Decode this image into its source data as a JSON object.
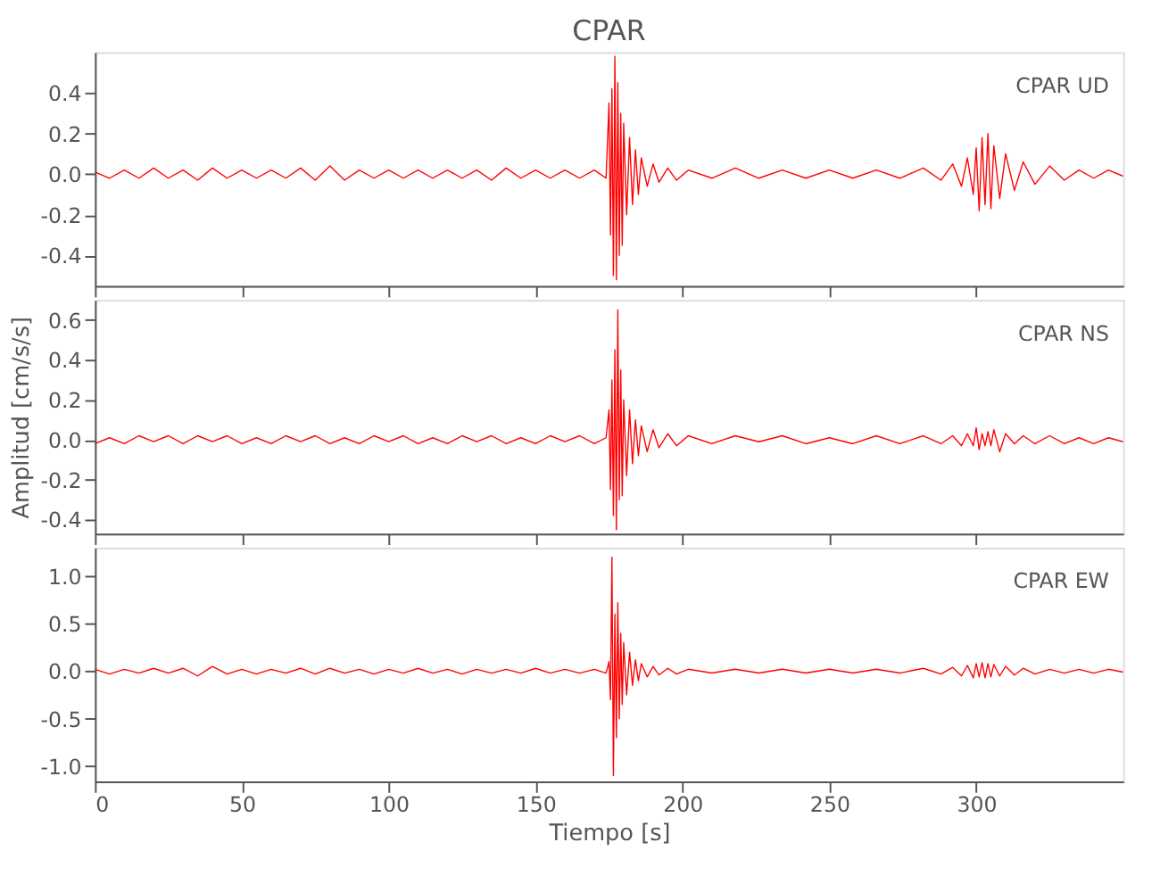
{
  "chart_data": [
    {
      "type": "line",
      "title": "CPAR",
      "annotations": [
        "CPAR UD"
      ],
      "xlim": [
        0,
        350
      ],
      "xticks": [
        0,
        50,
        100,
        150,
        200,
        250,
        300
      ],
      "ylim": [
        -0.55,
        0.6
      ],
      "yticks": [
        -0.4,
        -0.2,
        {
          "value": 0,
          "label": "0.0"
        },
        0.2,
        0.4
      ],
      "grid": false,
      "tick_labels": "y",
      "series": [
        {
          "color": "#ff0000",
          "x": [
            0,
            5,
            10,
            15,
            20,
            25,
            30,
            35,
            40,
            45,
            50,
            55,
            60,
            65,
            70,
            75,
            80,
            85,
            90,
            95,
            100,
            105,
            110,
            115,
            120,
            125,
            130,
            135,
            140,
            145,
            150,
            155,
            160,
            165,
            170,
            174,
            175,
            175.5,
            176,
            176.5,
            177,
            177.5,
            178,
            178.5,
            179,
            179.5,
            180,
            181,
            182,
            183,
            184,
            185,
            186,
            188,
            190,
            192,
            195,
            198,
            202,
            210,
            218,
            226,
            234,
            242,
            250,
            258,
            266,
            274,
            282,
            288,
            292,
            295,
            297,
            299,
            300,
            301,
            302,
            303,
            304,
            305,
            306,
            308,
            310,
            313,
            316,
            320,
            325,
            330,
            335,
            340,
            345,
            350
          ],
          "values": [
            0.01,
            -0.02,
            0.02,
            -0.02,
            0.03,
            -0.02,
            0.02,
            -0.03,
            0.03,
            -0.02,
            0.02,
            -0.02,
            0.02,
            -0.02,
            0.03,
            -0.03,
            0.04,
            -0.03,
            0.02,
            -0.02,
            0.02,
            -0.02,
            0.02,
            -0.02,
            0.02,
            -0.02,
            0.02,
            -0.03,
            0.03,
            -0.02,
            0.02,
            -0.02,
            0.02,
            -0.02,
            0.02,
            -0.02,
            0.35,
            -0.3,
            0.42,
            -0.5,
            0.58,
            -0.52,
            0.45,
            -0.4,
            0.3,
            -0.35,
            0.25,
            -0.2,
            0.18,
            -0.15,
            0.12,
            -0.1,
            0.08,
            -0.06,
            0.05,
            -0.04,
            0.03,
            -0.03,
            0.02,
            -0.02,
            0.03,
            -0.02,
            0.02,
            -0.02,
            0.02,
            -0.02,
            0.02,
            -0.02,
            0.03,
            -0.03,
            0.05,
            -0.06,
            0.08,
            -0.1,
            0.13,
            -0.18,
            0.18,
            -0.15,
            0.2,
            -0.17,
            0.14,
            -0.12,
            0.1,
            -0.08,
            0.06,
            -0.05,
            0.04,
            -0.03,
            0.02,
            -0.02,
            0.02,
            -0.01
          ]
        }
      ]
    },
    {
      "type": "line",
      "ylabel": "Amplitud [cm/s/s]",
      "annotations": [
        "CPAR NS"
      ],
      "xlim": [
        0,
        350
      ],
      "xticks": [
        0,
        50,
        100,
        150,
        200,
        250,
        300
      ],
      "ylim": [
        -0.47,
        0.7
      ],
      "yticks": [
        -0.4,
        -0.2,
        {
          "value": 0,
          "label": "0.0"
        },
        0.2,
        0.4,
        0.6
      ],
      "grid": false,
      "tick_labels": "y",
      "series": [
        {
          "color": "#ff0000",
          "x": [
            0,
            5,
            10,
            15,
            20,
            25,
            30,
            35,
            40,
            45,
            50,
            55,
            60,
            65,
            70,
            75,
            80,
            85,
            90,
            95,
            100,
            105,
            110,
            115,
            120,
            125,
            130,
            135,
            140,
            145,
            150,
            155,
            160,
            165,
            170,
            174,
            175,
            175.5,
            176,
            176.5,
            177,
            177.5,
            178,
            178.5,
            179,
            179.5,
            180,
            181,
            182,
            183,
            184,
            185,
            186,
            188,
            190,
            192,
            195,
            198,
            202,
            210,
            218,
            226,
            234,
            242,
            250,
            258,
            266,
            274,
            282,
            288,
            292,
            295,
            297,
            299,
            300,
            301,
            302,
            303,
            304,
            305,
            306,
            308,
            310,
            313,
            316,
            320,
            325,
            330,
            335,
            340,
            345,
            350
          ],
          "values": [
            -0.02,
            0.01,
            -0.02,
            0.02,
            -0.01,
            0.02,
            -0.02,
            0.02,
            -0.01,
            0.02,
            -0.02,
            0.01,
            -0.02,
            0.02,
            -0.01,
            0.02,
            -0.02,
            0.01,
            -0.02,
            0.02,
            -0.01,
            0.02,
            -0.02,
            0.01,
            -0.02,
            0.02,
            -0.01,
            0.02,
            -0.02,
            0.01,
            -0.02,
            0.02,
            -0.01,
            0.02,
            -0.02,
            0.01,
            0.15,
            -0.25,
            0.3,
            -0.38,
            0.45,
            -0.45,
            0.65,
            -0.3,
            0.35,
            -0.28,
            0.2,
            -0.18,
            0.15,
            -0.12,
            0.1,
            -0.08,
            0.07,
            -0.06,
            0.05,
            -0.04,
            0.03,
            -0.03,
            0.02,
            -0.02,
            0.02,
            -0.01,
            0.02,
            -0.02,
            0.01,
            -0.02,
            0.02,
            -0.02,
            0.02,
            -0.02,
            0.02,
            -0.03,
            0.03,
            -0.03,
            0.06,
            -0.05,
            0.03,
            -0.03,
            0.04,
            -0.03,
            0.05,
            -0.06,
            0.03,
            -0.02,
            0.02,
            -0.02,
            0.02,
            -0.02,
            0.01,
            -0.02,
            0.01,
            -0.01
          ]
        }
      ]
    },
    {
      "type": "line",
      "xlabel": "Tiempo [s]",
      "annotations": [
        "CPAR EW"
      ],
      "xlim": [
        0,
        350
      ],
      "xticks": [
        0,
        50,
        100,
        150,
        200,
        250,
        300
      ],
      "ylim": [
        -1.16,
        1.3
      ],
      "yticks": [
        {
          "value": -1,
          "label": "-1.0"
        },
        -0.5,
        {
          "value": 0,
          "label": "0.0"
        },
        0.5,
        {
          "value": 1,
          "label": "1.0"
        }
      ],
      "grid": false,
      "series": [
        {
          "color": "#ff0000",
          "x": [
            0,
            5,
            10,
            15,
            20,
            25,
            30,
            35,
            40,
            45,
            50,
            55,
            60,
            65,
            70,
            75,
            80,
            85,
            90,
            95,
            100,
            105,
            110,
            115,
            120,
            125,
            130,
            135,
            140,
            145,
            150,
            155,
            160,
            165,
            170,
            174,
            175,
            175.5,
            176,
            176.5,
            177,
            177.5,
            178,
            178.5,
            179,
            179.5,
            180,
            181,
            182,
            183,
            184,
            185,
            186,
            188,
            190,
            192,
            195,
            198,
            202,
            210,
            218,
            226,
            234,
            242,
            250,
            258,
            266,
            274,
            282,
            288,
            292,
            295,
            297,
            299,
            300,
            301,
            302,
            303,
            304,
            305,
            306,
            308,
            310,
            313,
            316,
            320,
            325,
            330,
            335,
            340,
            345,
            350
          ],
          "values": [
            0.02,
            -0.03,
            0.02,
            -0.02,
            0.03,
            -0.02,
            0.03,
            -0.05,
            0.05,
            -0.03,
            0.02,
            -0.03,
            0.02,
            -0.02,
            0.03,
            -0.03,
            0.03,
            -0.02,
            0.02,
            -0.03,
            0.02,
            -0.02,
            0.03,
            -0.02,
            0.02,
            -0.03,
            0.02,
            -0.02,
            0.02,
            -0.02,
            0.03,
            -0.02,
            0.02,
            -0.02,
            0.02,
            -0.02,
            0.1,
            -0.3,
            1.2,
            -1.1,
            0.6,
            -0.7,
            0.72,
            -0.5,
            0.4,
            -0.35,
            0.3,
            -0.25,
            0.2,
            -0.15,
            0.12,
            -0.1,
            0.08,
            -0.06,
            0.05,
            -0.04,
            0.03,
            -0.03,
            0.02,
            -0.02,
            0.02,
            -0.02,
            0.02,
            -0.02,
            0.02,
            -0.02,
            0.02,
            -0.02,
            0.03,
            -0.03,
            0.04,
            -0.05,
            0.06,
            -0.07,
            0.08,
            -0.06,
            0.09,
            -0.07,
            0.08,
            -0.06,
            0.07,
            -0.05,
            0.05,
            -0.04,
            0.03,
            -0.03,
            0.02,
            -0.02,
            0.02,
            -0.02,
            0.02,
            -0.01
          ]
        }
      ]
    }
  ]
}
